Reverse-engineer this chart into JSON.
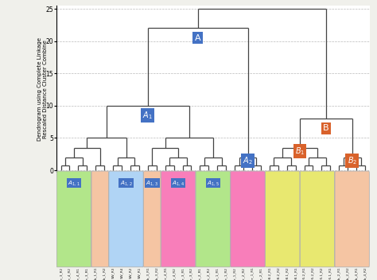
{
  "title": "Dendrogram using Complete Linkage\nRescaled Distance Cluster Combine",
  "bg_color": "#f0f0eb",
  "plot_bg": "#ffffff",
  "grid_color": "#bbbbbb",
  "yticks": [
    0,
    5,
    10,
    15,
    20,
    25
  ],
  "line_color": "#444444",
  "line_width": 0.9,
  "leaf_labels": [
    "Die_3_R2",
    "Die_4_R2",
    "Die_4_R1",
    "Die_3_R1",
    "Lub_1_R1",
    "Lub_1_R2",
    "SW_R3",
    "SW_R4",
    "SW_R2",
    "SW_R1",
    "Lub_3_R1",
    "Lub_3_R2",
    "Ker_4_R1",
    "Ker_4_R2",
    "Ker_3_R1",
    "Ker_3_R2",
    "Die_2_R1",
    "Die_2_R2",
    "Die_1_R1",
    "Die_1_R2",
    "Ker_1_R2",
    "Ker_2_R2",
    "Ker_1_R1",
    "Ker_2_R1",
    "Gas_98.2_R1",
    "Gas_98.2_R2",
    "Gas_98.1_R2",
    "Gas_98.1_R1",
    "Gas_95.2_R1",
    "Gas_95.2_R2",
    "Gas_95.1_R2",
    "Gas_95.1_R1",
    "Lub_2_R1",
    "Lub_2_R2",
    "Lub_4_R1",
    "Lub_4_R2"
  ],
  "leaf_groups": [
    {
      "start": 0,
      "end": 3,
      "color": "#b2e68a",
      "label": "A_{1,1}",
      "label_color": "#4472c4"
    },
    {
      "start": 4,
      "end": 5,
      "color": "#f5c5a3",
      "label": null,
      "label_color": null
    },
    {
      "start": 6,
      "end": 9,
      "color": "#b0d4f5",
      "label": "A_{1,2}",
      "label_color": "#4472c4"
    },
    {
      "start": 10,
      "end": 11,
      "color": "#f5c5a3",
      "label": "A_{1,3}",
      "label_color": "#4472c4"
    },
    {
      "start": 12,
      "end": 15,
      "color": "#f87eba",
      "label": "A_{1,4}",
      "label_color": "#4472c4"
    },
    {
      "start": 16,
      "end": 19,
      "color": "#b2e68a",
      "label": "A_{1,5}",
      "label_color": "#4472c4"
    },
    {
      "start": 20,
      "end": 23,
      "color": "#f87eba",
      "label": null,
      "label_color": null
    },
    {
      "start": 24,
      "end": 27,
      "color": "#e8e870",
      "label": null,
      "label_color": null
    },
    {
      "start": 28,
      "end": 31,
      "color": "#e8e870",
      "label": null,
      "label_color": null
    },
    {
      "start": 32,
      "end": 35,
      "color": "#f5c5a3",
      "label": null,
      "label_color": null
    }
  ]
}
